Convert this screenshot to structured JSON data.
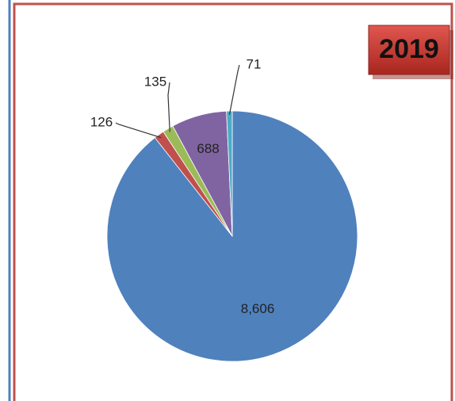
{
  "chart_data": {
    "type": "pie",
    "title": "2019",
    "values": [
      8606,
      126,
      135,
      688,
      71
    ],
    "value_labels": [
      "8,606",
      "126",
      "135",
      "688",
      "71"
    ],
    "colors": [
      "#4f81bd",
      "#c0504d",
      "#9bbb59",
      "#8064a2",
      "#4bacc6"
    ]
  }
}
